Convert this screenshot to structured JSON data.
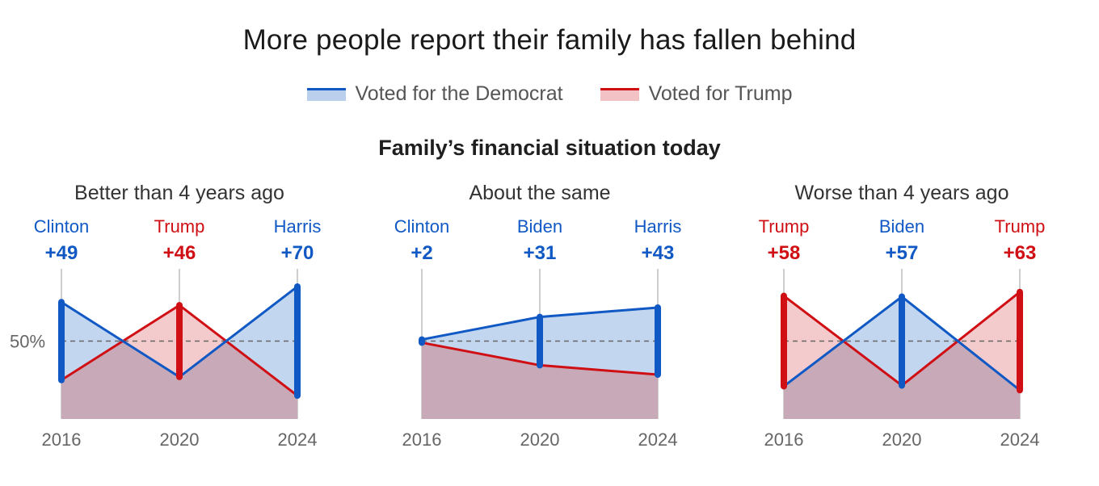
{
  "title": "More people report their family has fallen behind",
  "subtitle": "Family’s financial situation today",
  "colors": {
    "dem": "#1059c4",
    "dem_fill": "#b9cfec",
    "rep": "#d00f14",
    "rep_fill": "#f2c2c4",
    "overlap": "#c8a9b8",
    "axis_text": "#666666"
  },
  "legend": [
    {
      "label": "Voted for the Democrat",
      "party": "dem"
    },
    {
      "label": "Voted for Trump",
      "party": "rep"
    }
  ],
  "reference_label": "50%",
  "chart_data": [
    {
      "type": "area",
      "title": "Better than 4 years ago",
      "x": [
        "2016",
        "2020",
        "2024"
      ],
      "leaders": [
        {
          "name": "Clinton",
          "margin": "+49",
          "party": "dem"
        },
        {
          "name": "Trump",
          "margin": "+46",
          "party": "rep"
        },
        {
          "name": "Harris",
          "margin": "+70",
          "party": "dem"
        }
      ],
      "series": [
        {
          "party": "dem",
          "values": [
            75,
            27,
            85
          ]
        },
        {
          "party": "rep",
          "values": [
            25,
            73,
            15
          ]
        }
      ],
      "ylim": [
        0,
        100
      ]
    },
    {
      "type": "area",
      "title": "About the same",
      "x": [
        "2016",
        "2020",
        "2024"
      ],
      "leaders": [
        {
          "name": "Clinton",
          "margin": "+2",
          "party": "dem"
        },
        {
          "name": "Biden",
          "margin": "+31",
          "party": "dem"
        },
        {
          "name": "Harris",
          "margin": "+43",
          "party": "dem"
        }
      ],
      "series": [
        {
          "party": "dem",
          "values": [
            51,
            65.5,
            71.5
          ]
        },
        {
          "party": "rep",
          "values": [
            49,
            34.5,
            28.5
          ]
        }
      ],
      "ylim": [
        0,
        100
      ]
    },
    {
      "type": "area",
      "title": "Worse than 4 years ago",
      "x": [
        "2016",
        "2020",
        "2024"
      ],
      "leaders": [
        {
          "name": "Trump",
          "margin": "+58",
          "party": "rep"
        },
        {
          "name": "Biden",
          "margin": "+57",
          "party": "dem"
        },
        {
          "name": "Trump",
          "margin": "+63",
          "party": "rep"
        }
      ],
      "series": [
        {
          "party": "dem",
          "values": [
            21,
            78.5,
            18.5
          ]
        },
        {
          "party": "rep",
          "values": [
            79,
            21.5,
            81.5
          ]
        }
      ],
      "ylim": [
        0,
        100
      ]
    }
  ]
}
